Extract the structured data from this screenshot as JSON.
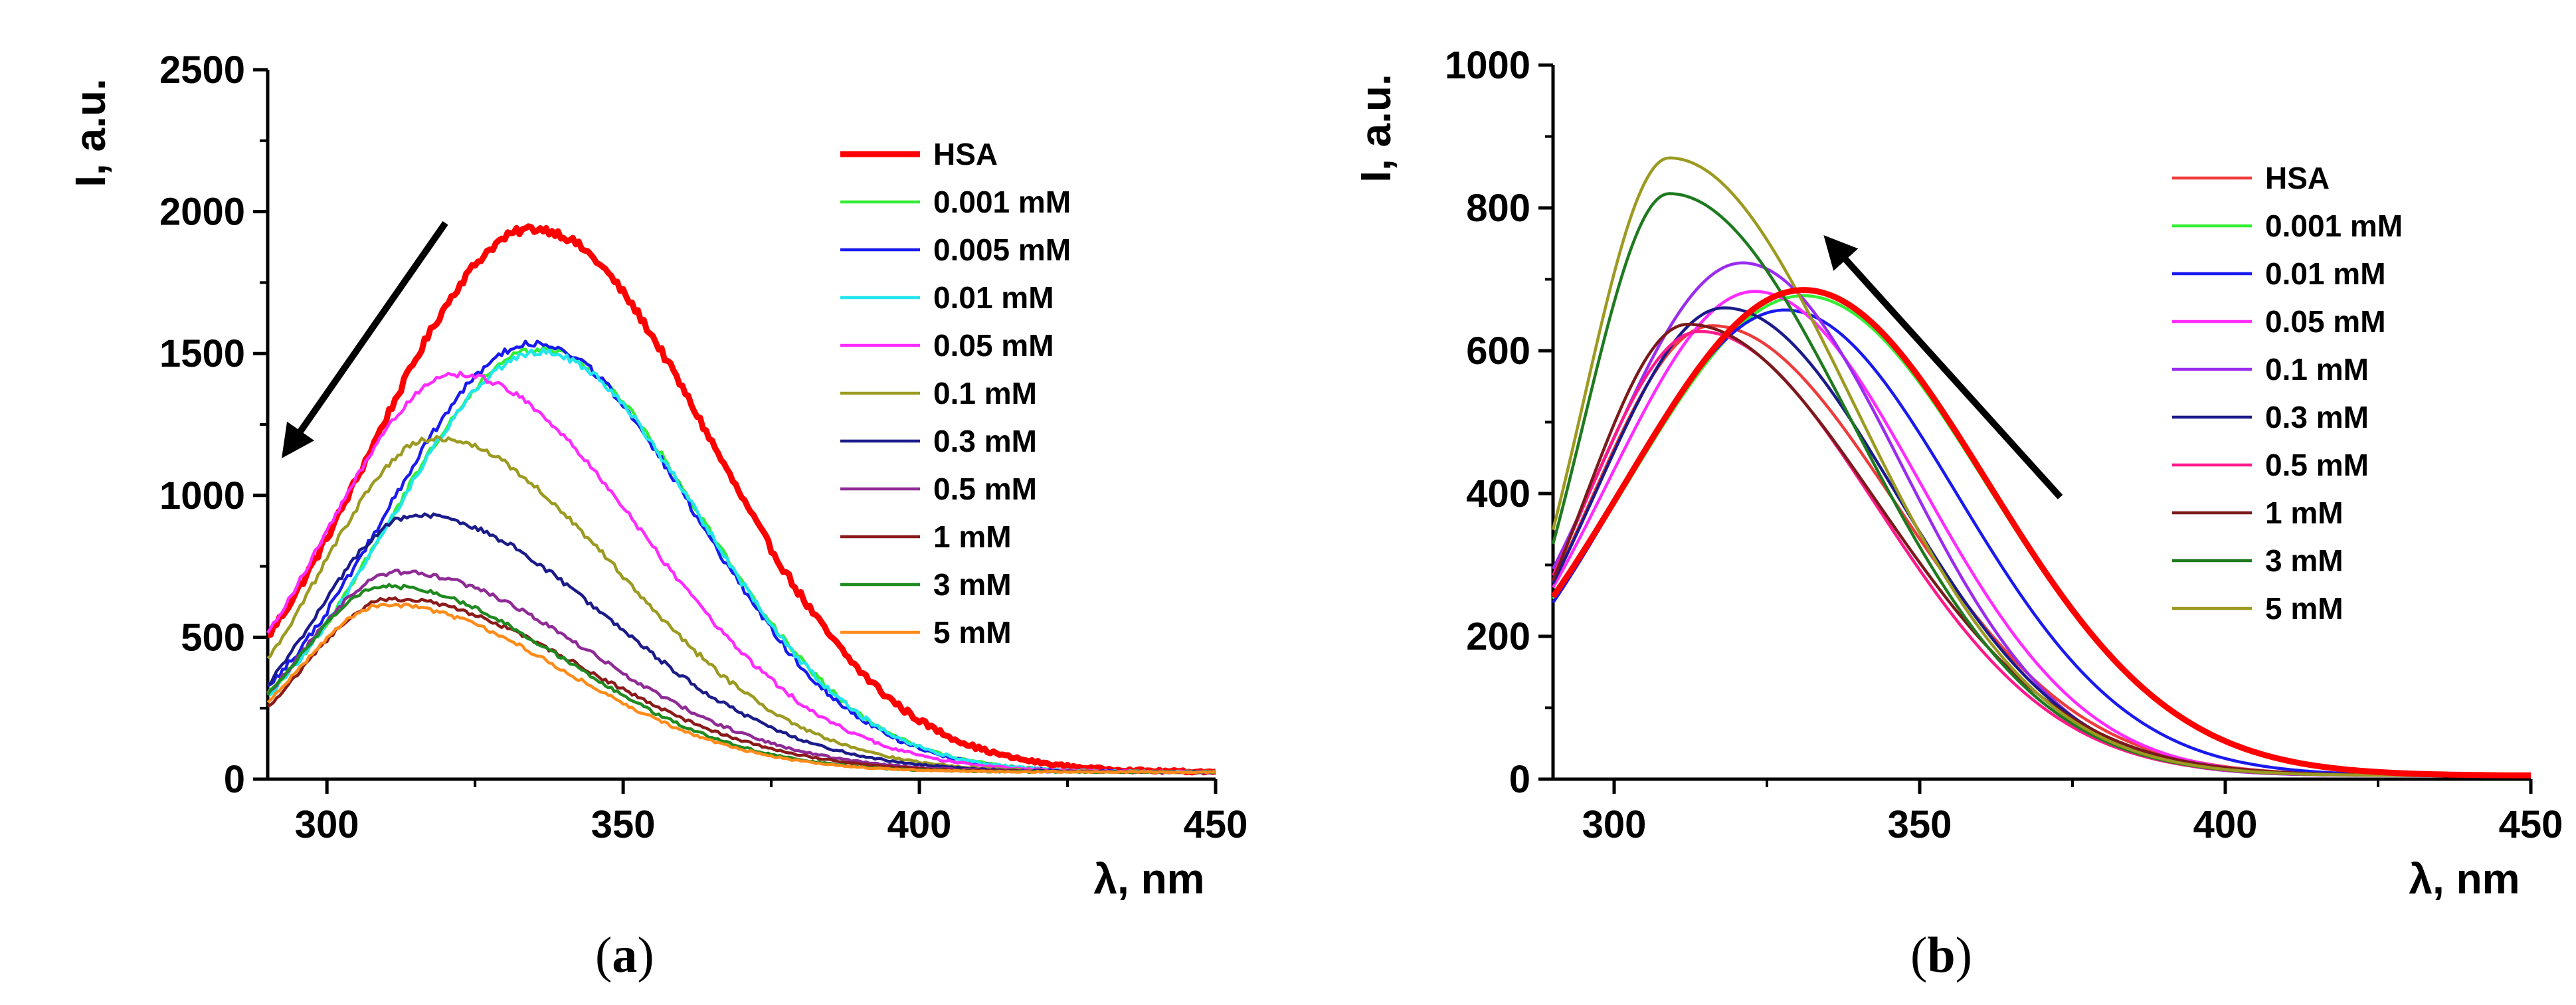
{
  "chart_data": [
    {
      "type": "line",
      "panel": "a",
      "caption": "a",
      "xlabel": "λ, nm",
      "ylabel": "I, a.u.",
      "xlim": [
        290,
        450
      ],
      "ylim": [
        0,
        2500
      ],
      "xticks": [
        300,
        350,
        400,
        450
      ],
      "yticks": [
        0,
        500,
        1000,
        1500,
        2000,
        2500
      ],
      "legend_position": "top-right",
      "arrow": {
        "from": [
          320,
          1960
        ],
        "to": [
          293,
          1150
        ]
      },
      "series": [
        {
          "name": "HSA",
          "color": "#ff0000",
          "width": 9,
          "peak": 335,
          "amp": 1915,
          "sL": 27,
          "sR": 30,
          "noise": 14
        },
        {
          "name": "0.001 mM",
          "color": "#33ee33",
          "width": 4.5,
          "peak": 336,
          "amp": 1490,
          "sL": 25,
          "sR": 27,
          "noise": 12
        },
        {
          "name": "0.005 mM",
          "color": "#1a1aee",
          "width": 4.5,
          "peak": 335,
          "amp": 1510,
          "sL": 25,
          "sR": 27,
          "noise": 12
        },
        {
          "name": "0.01 mM",
          "color": "#22e6ee",
          "width": 4.5,
          "peak": 336,
          "amp": 1480,
          "sL": 25,
          "sR": 27,
          "noise": 12
        },
        {
          "name": "0.05 mM",
          "color": "#ff2bff",
          "width": 4.5,
          "peak": 322,
          "amp": 1400,
          "sL": 22,
          "sR": 31,
          "noise": 10
        },
        {
          "name": "0.1 mM",
          "color": "#9c9a21",
          "width": 4.5,
          "peak": 318,
          "amp": 1175,
          "sL": 19,
          "sR": 31,
          "noise": 10
        },
        {
          "name": "0.3 mM",
          "color": "#1b1b8a",
          "width": 4.5,
          "peak": 315,
          "amp": 905,
          "sL": 17,
          "sR": 32,
          "noise": 9
        },
        {
          "name": "0.5 mM",
          "color": "#8e2b95",
          "width": 4.5,
          "peak": 312,
          "amp": 705,
          "sL": 16,
          "sR": 32,
          "noise": 8
        },
        {
          "name": "1 mM",
          "color": "#8b1a1a",
          "width": 4.5,
          "peak": 311,
          "amp": 610,
          "sL": 15,
          "sR": 32,
          "noise": 7
        },
        {
          "name": "3 mM",
          "color": "#1f8a1f",
          "width": 4.5,
          "peak": 310,
          "amp": 655,
          "sL": 15,
          "sR": 30,
          "noise": 7
        },
        {
          "name": "5 mM",
          "color": "#ff8c1a",
          "width": 4.5,
          "peak": 310,
          "amp": 590,
          "sL": 15,
          "sR": 30,
          "noise": 7
        }
      ]
    },
    {
      "type": "line",
      "panel": "b",
      "caption": "b",
      "xlabel": "λ, nm",
      "ylabel": "I, a.u.",
      "xlim": [
        290,
        450
      ],
      "ylim": [
        0,
        1000
      ],
      "xticks": [
        300,
        350,
        400,
        450
      ],
      "yticks": [
        0,
        200,
        400,
        600,
        800,
        1000
      ],
      "legend_position": "top-right",
      "arrow": {
        "from": [
          373,
          395
        ],
        "to": [
          335,
          755
        ]
      },
      "series": [
        {
          "name": "HSA",
          "color": "#ee3b3b",
          "width": 4.5,
          "peak": 316,
          "amp": 630,
          "sL": 20,
          "sR": 30,
          "noise": 0
        },
        {
          "name": "0.001 mM",
          "color": "#33ee33",
          "width": 4.5,
          "peak": 331,
          "amp": 672,
          "sL": 29,
          "sR": 30,
          "noise": 0
        },
        {
          "name": "0.01 mM",
          "color": "#1a1aee",
          "width": 4.5,
          "peak": 328,
          "amp": 652,
          "sL": 27,
          "sR": 28,
          "noise": 0
        },
        {
          "name": "0.05 mM",
          "color": "#ff2bff",
          "width": 4.5,
          "peak": 323,
          "amp": 678,
          "sL": 24,
          "sR": 27,
          "noise": 0
        },
        {
          "name": "0.1 mM",
          "color": "#9b2bee",
          "width": 4.5,
          "peak": 321,
          "amp": 718,
          "sL": 23,
          "sR": 26,
          "noise": 0
        },
        {
          "name": "0.3 mM",
          "color": "#1b1b8a",
          "width": 4.5,
          "peak": 318,
          "amp": 655,
          "sL": 21,
          "sR": 28,
          "noise": 0
        },
        {
          "name": "0.5 mM",
          "color": "#ff1a8c",
          "width": 4.5,
          "peak": 314,
          "amp": 622,
          "sL": 19,
          "sR": 29,
          "noise": 0
        },
        {
          "name": "1 mM",
          "color": "#7a1a1a",
          "width": 4.5,
          "peak": 312,
          "amp": 632,
          "sL": 17,
          "sR": 31,
          "noise": 0
        },
        {
          "name": "3 mM",
          "color": "#1f7a1f",
          "width": 4.5,
          "peak": 309,
          "amp": 815,
          "sL": 14,
          "sR": 30,
          "noise": 0
        },
        {
          "name": "5 mM",
          "color": "#9c9a21",
          "width": 4.5,
          "peak": 309,
          "amp": 865,
          "sL": 14,
          "sR": 30,
          "noise": 0
        },
        {
          "name": "HSA-bold",
          "legend": false,
          "color": "#ff0000",
          "width": 9,
          "peak": 331,
          "amp": 680,
          "sL": 29,
          "sR": 30,
          "noise": 0
        }
      ]
    }
  ]
}
